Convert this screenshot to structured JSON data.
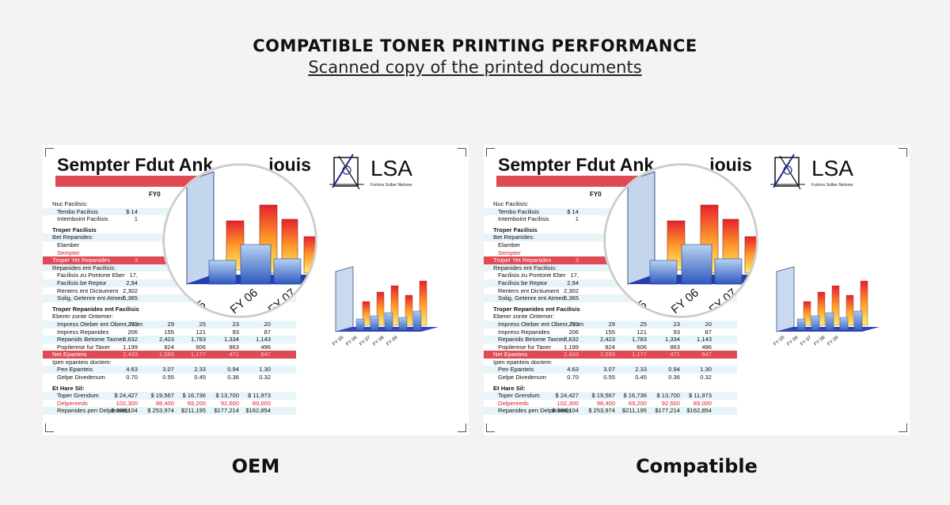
{
  "header": {
    "title": "COMPATIBLE TONER PRINTING PERFORMANCE",
    "subtitle": "Scanned copy of the printed documents"
  },
  "document": {
    "title": "Sempter Fdut Ank",
    "title_tail": "iouis",
    "red_bar_text": "",
    "column_head": "FY0",
    "logo": {
      "text": "LSA",
      "sub": "Furrires Solber Nielsner"
    },
    "chart_labels": [
      "FY 05",
      "FY 06",
      "FY 07",
      "FY 08",
      "FY 09"
    ],
    "magnified_labels": [
      "05",
      "FY 06",
      "FY 07"
    ],
    "rows": [
      {
        "label": "Nuc Facilisis:",
        "type": "plain",
        "values": []
      },
      {
        "label": "Tembo Facilisis",
        "type": "sub",
        "values": [
          "$ 14",
          "",
          "",
          "",
          ""
        ]
      },
      {
        "label": "Intemboint Facilisis",
        "type": "sub",
        "values": [
          "1",
          "",
          "",
          "",
          ""
        ]
      },
      {
        "type": "gap"
      },
      {
        "label": "Troper Facilisis",
        "type": "hdr",
        "values": []
      },
      {
        "label": "Bet Repanides:",
        "type": "plain",
        "values": []
      },
      {
        "label": "Elamber",
        "type": "sub",
        "values": []
      },
      {
        "label": "Sempter",
        "type": "subred",
        "values": []
      },
      {
        "label": "Troper Yet Repanides",
        "type": "band",
        "values": [
          "3",
          "",
          "",
          "",
          ""
        ]
      },
      {
        "label": "Repanides ent Facilisis:",
        "type": "plain",
        "values": []
      },
      {
        "label": "Facilisis zu Pontone Eber",
        "type": "sub",
        "values": [
          "17,",
          "",
          "",
          "",
          ""
        ]
      },
      {
        "label": "Facilisis be Reptor",
        "type": "sub",
        "values": [
          "2,94",
          "",
          "",
          "",
          ""
        ]
      },
      {
        "label": "Renters ent Dictiument",
        "type": "sub",
        "values": [
          "2,302",
          "",
          "",
          "",
          ""
        ]
      },
      {
        "label": "Solig, Getenre ent Atmed",
        "type": "sub",
        "values": [
          "5,365",
          "",
          "",
          "",
          ""
        ]
      },
      {
        "type": "gap"
      },
      {
        "label": "Troper Repanides ent Facilisis",
        "type": "hdr",
        "values": []
      },
      {
        "label": "Eberer zonte Ontemer:",
        "type": "plain",
        "values": []
      },
      {
        "label": "Impress Oteber ent Obenr, Num",
        "type": "sub",
        "values": [
          "270",
          "29",
          "25",
          "23",
          "20"
        ]
      },
      {
        "label": "Impress Repanides",
        "type": "sub",
        "values": [
          "206",
          "155",
          "121",
          "93",
          "87"
        ]
      },
      {
        "label": "Repanids Betome Taxner",
        "type": "sub",
        "values": [
          "3,632",
          "2,423",
          "1,783",
          "1,334",
          "1,143"
        ]
      },
      {
        "label": "Popilemse fur Taxer",
        "type": "sub",
        "values": [
          "1,199",
          "824",
          "606",
          "863",
          "496"
        ]
      },
      {
        "label": "Net Epanteis",
        "type": "band",
        "values": [
          "2,433",
          "1,593",
          "1,177",
          "471",
          "647"
        ]
      },
      {
        "label": "Ipen epanteis doctem:",
        "type": "plain",
        "values": []
      },
      {
        "label": "Pen Epanteis",
        "type": "sub",
        "values": [
          "4.63",
          "3.07",
          "2.33",
          "0.94",
          "1.30"
        ]
      },
      {
        "label": "Gelpe Divedenum",
        "type": "sub",
        "values": [
          "0.70",
          "0.55",
          "0.45",
          "0.36",
          "0.32"
        ]
      },
      {
        "type": "gap"
      },
      {
        "label": "Et Hare Sil:",
        "type": "hdr",
        "values": []
      },
      {
        "label": "Toper Grendum",
        "type": "sub",
        "values": [
          "$ 24,427",
          "$ 19,567",
          "$ 16,736",
          "$ 13,700",
          "$ 11,973"
        ]
      },
      {
        "label": "Delpereeds",
        "type": "subred",
        "values": [
          "102,300",
          "98,400",
          "69,200",
          "92,600",
          "89,000"
        ]
      },
      {
        "label": "Repanides pen Delpereeds",
        "type": "sub",
        "values": [
          "$ 308,104",
          "$ 253,974",
          "$211,195",
          "$177,214",
          "$162,854"
        ]
      }
    ]
  },
  "captions": {
    "left": "OEM",
    "right": "Compatible"
  },
  "colors": {
    "accent_red": "#e04a55",
    "text_red": "#dd2222",
    "bar_blue": "#5a8fd6"
  }
}
